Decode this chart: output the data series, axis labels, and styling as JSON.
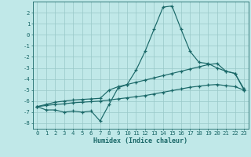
{
  "x": [
    0,
    1,
    2,
    3,
    4,
    5,
    6,
    7,
    8,
    9,
    10,
    11,
    12,
    13,
    14,
    15,
    16,
    17,
    18,
    19,
    20,
    21,
    22,
    23
  ],
  "line1": [
    -6.5,
    -6.8,
    -6.8,
    -7.0,
    -6.9,
    -7.0,
    -6.9,
    -7.8,
    -6.3,
    -4.8,
    -4.5,
    -3.2,
    -1.5,
    0.5,
    2.5,
    2.6,
    0.5,
    -1.5,
    -2.5,
    -2.6,
    -3.0,
    -3.3,
    -3.5,
    -4.9
  ],
  "line2": [
    -6.5,
    -6.3,
    -6.1,
    -6.0,
    -5.9,
    -5.85,
    -5.8,
    -5.75,
    -5.0,
    -4.7,
    -4.5,
    -4.3,
    -4.1,
    -3.9,
    -3.7,
    -3.5,
    -3.3,
    -3.1,
    -2.9,
    -2.7,
    -2.6,
    -3.3,
    -3.5,
    -5.0
  ],
  "line3": [
    -6.5,
    -6.4,
    -6.3,
    -6.25,
    -6.15,
    -6.1,
    -6.05,
    -6.0,
    -5.9,
    -5.8,
    -5.7,
    -5.6,
    -5.5,
    -5.35,
    -5.2,
    -5.05,
    -4.9,
    -4.75,
    -4.65,
    -4.55,
    -4.5,
    -4.6,
    -4.7,
    -5.0
  ],
  "bg_color": "#c0e8e8",
  "line_color": "#1a6868",
  "grid_color": "#98c8c8",
  "xlabel": "Humidex (Indice chaleur)",
  "xlim": [
    -0.5,
    23.5
  ],
  "ylim": [
    -8.5,
    3.0
  ],
  "yticks": [
    2,
    1,
    0,
    -1,
    -2,
    -3,
    -4,
    -5,
    -6,
    -7,
    -8
  ],
  "xticks": [
    0,
    1,
    2,
    3,
    4,
    5,
    6,
    7,
    8,
    9,
    10,
    11,
    12,
    13,
    14,
    15,
    16,
    17,
    18,
    19,
    20,
    21,
    22,
    23
  ],
  "tick_fontsize": 5.2,
  "xlabel_fontsize": 6.0
}
